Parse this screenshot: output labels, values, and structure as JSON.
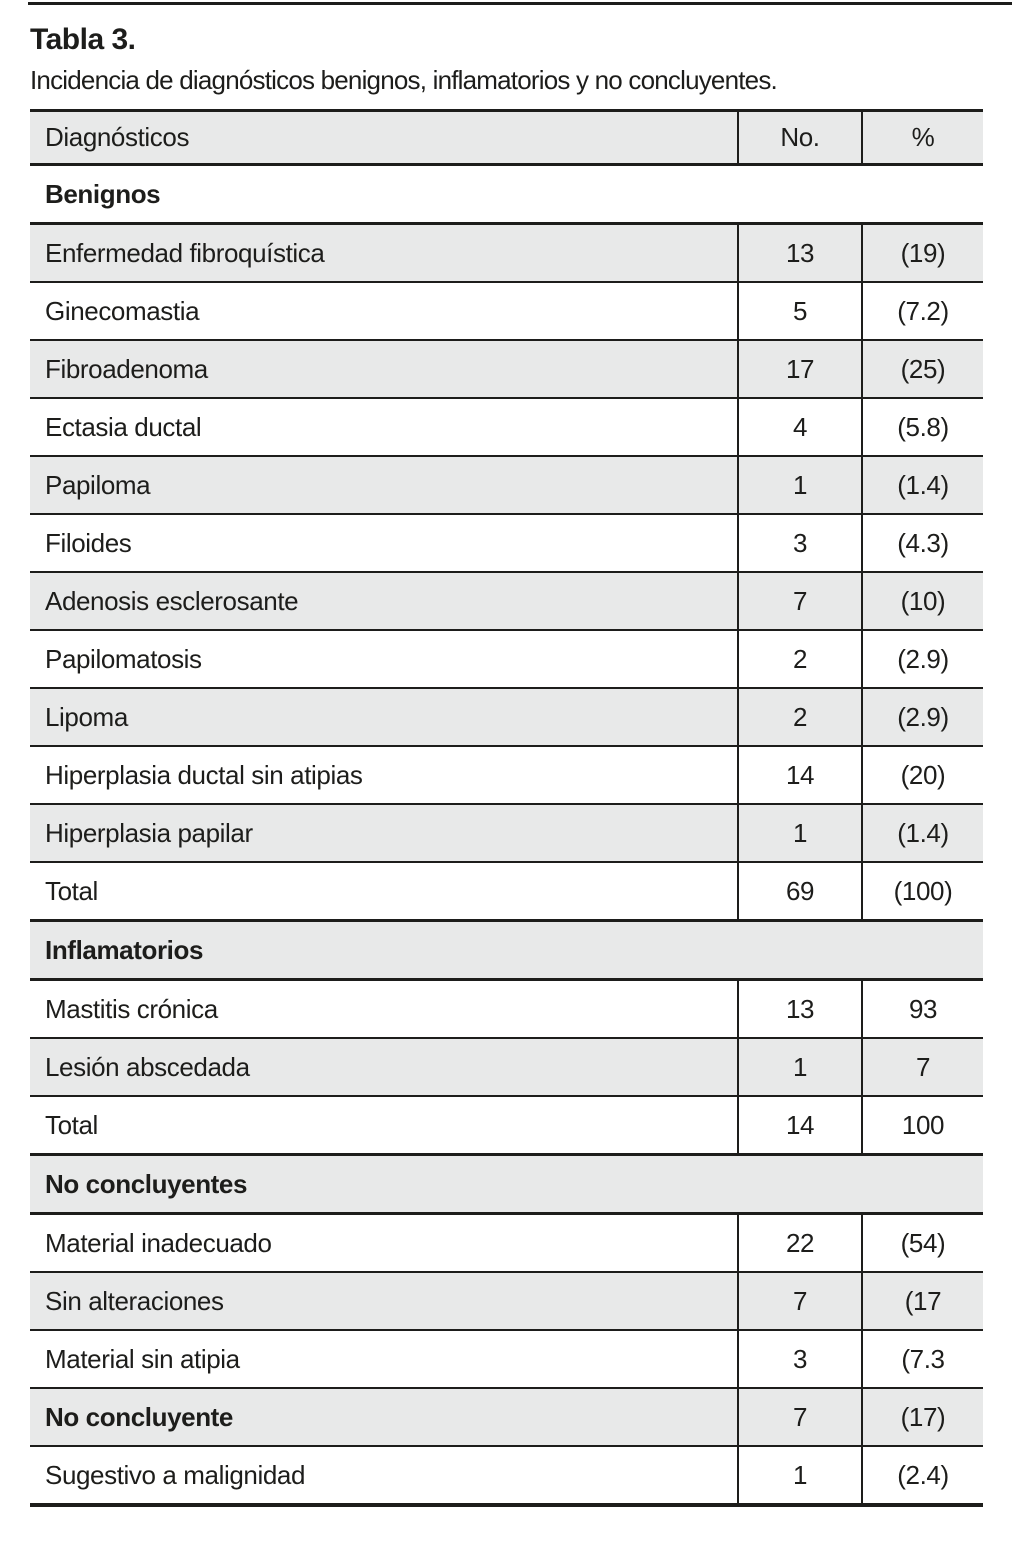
{
  "page": {
    "title": "Tabla 3.",
    "subtitle": "Incidencia de diagnósticos benignos, inflamatorios y no concluyentes."
  },
  "colors": {
    "row_alt_bg": "#e8e9e9",
    "border": "#1d1d1b",
    "text": "#1d1d1b"
  },
  "table": {
    "headers": [
      "Diagnósticos",
      "No.",
      "%"
    ],
    "rows": [
      {
        "type": "section",
        "label": "Benignos"
      },
      {
        "type": "data",
        "label": "Enfermedad fibroquística",
        "no": "13",
        "pct": "(19)"
      },
      {
        "type": "data",
        "label": "Ginecomastia",
        "no": "5",
        "pct": "(7.2)"
      },
      {
        "type": "data",
        "label": "Fibroadenoma",
        "no": "17",
        "pct": "(25)"
      },
      {
        "type": "data",
        "label": "Ectasia ductal",
        "no": "4",
        "pct": "(5.8)"
      },
      {
        "type": "data",
        "label": "Papiloma",
        "no": "1",
        "pct": "(1.4)"
      },
      {
        "type": "data",
        "label": "Filoides",
        "no": "3",
        "pct": "(4.3)"
      },
      {
        "type": "data",
        "label": "Adenosis esclerosante",
        "no": "7",
        "pct": "(10)"
      },
      {
        "type": "data",
        "label": "Papilomatosis",
        "no": "2",
        "pct": "(2.9)"
      },
      {
        "type": "data",
        "label": "Lipoma",
        "no": "2",
        "pct": "(2.9)"
      },
      {
        "type": "data",
        "label": "Hiperplasia ductal sin atipias",
        "no": "14",
        "pct": "(20)"
      },
      {
        "type": "data",
        "label": "Hiperplasia papilar",
        "no": "1",
        "pct": "(1.4)"
      },
      {
        "type": "data",
        "label": "Total",
        "no": "69",
        "pct": "(100)"
      },
      {
        "type": "section",
        "label": "Inflamatorios"
      },
      {
        "type": "data",
        "label": "Mastitis crónica",
        "no": "13",
        "pct": "93"
      },
      {
        "type": "data",
        "label": "Lesión abscedada",
        "no": "1",
        "pct": "7"
      },
      {
        "type": "data",
        "label": "Total",
        "no": "14",
        "pct": "100"
      },
      {
        "type": "section",
        "label": "No concluyentes"
      },
      {
        "type": "data",
        "label": "Material inadecuado",
        "no": "22",
        "pct": "(54)"
      },
      {
        "type": "data",
        "label": "Sin alteraciones",
        "no": "7",
        "pct": "(17"
      },
      {
        "type": "data",
        "label": "Material sin atipia",
        "no": "3",
        "pct": "(7.3"
      },
      {
        "type": "data",
        "label": "No concluyente",
        "no": "7",
        "pct": "(17)",
        "bold_label": true
      },
      {
        "type": "data",
        "label": "Sugestivo a malignidad",
        "no": "1",
        "pct": "(2.4)"
      }
    ]
  }
}
